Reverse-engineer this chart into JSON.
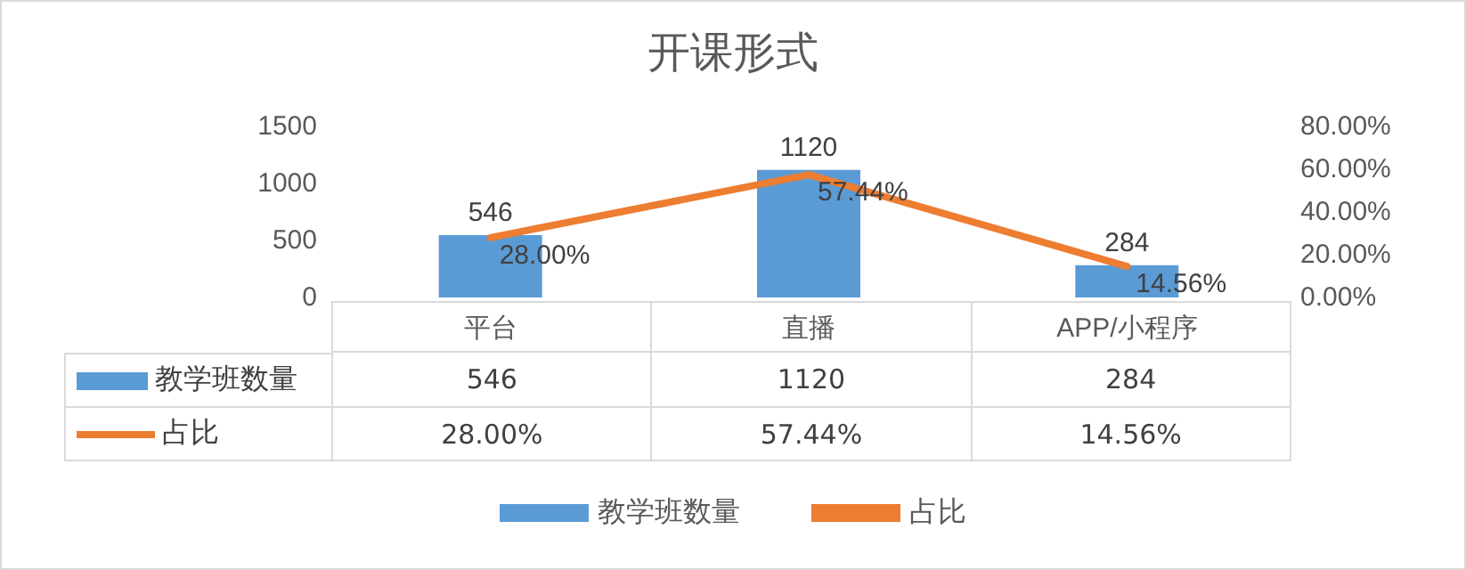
{
  "chart_data": {
    "type": "bar",
    "title": "开课形式",
    "categories": [
      "平台",
      "直播",
      "APP/小程序"
    ],
    "series": [
      {
        "name": "教学班数量",
        "color": "#5b9bd5",
        "values": [
          546,
          1120,
          284
        ],
        "value_labels": [
          "546",
          "1120",
          "284"
        ]
      },
      {
        "name": "占比",
        "type": "line",
        "axis": "y2",
        "color": "#ed7d31",
        "values": [
          28.0,
          57.44,
          14.56
        ],
        "value_labels": [
          "28.00%",
          "57.44%",
          "14.56%"
        ]
      }
    ],
    "ylim": [
      0,
      1500
    ],
    "yticks": [
      0,
      500,
      1000,
      1500
    ],
    "y2lim": [
      0,
      80
    ],
    "y2ticks": [
      {
        "value": 0,
        "label": "0.00%"
      },
      {
        "value": 20,
        "label": "20.00%"
      },
      {
        "value": 40,
        "label": "40.00%"
      },
      {
        "value": 60,
        "label": "60.00%"
      },
      {
        "value": 80,
        "label": "80.00%"
      }
    ],
    "grid": false,
    "legend": "bottom",
    "marker": "none",
    "line_style": "solid"
  }
}
